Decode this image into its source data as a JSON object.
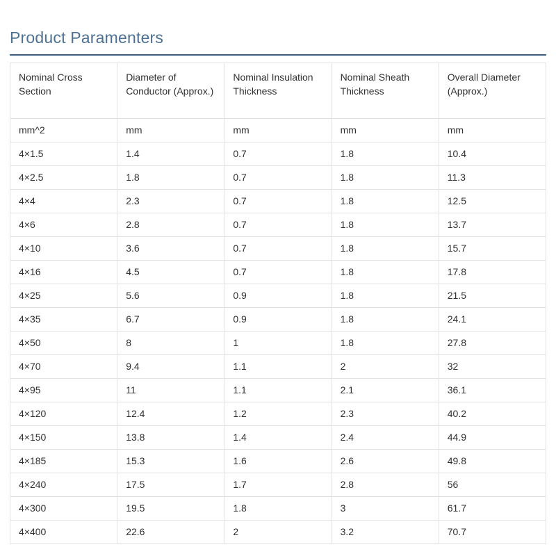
{
  "page": {
    "title": "Product Paramenters"
  },
  "theme": {
    "title_color": "#4e7193",
    "divider_color": "#3f5d80",
    "table_border_color": "#e2e2e2",
    "text_color": "#303030",
    "background_color": "#ffffff"
  },
  "table": {
    "columns": [
      "Nominal Cross Section",
      "Diameter of Conductor (Approx.)",
      "Nominal Insulation Thickness",
      "Nominal Sheath Thickness",
      "Overall Diameter (Approx.)"
    ],
    "units": [
      "mm^2",
      "mm",
      "mm",
      "mm",
      "mm"
    ],
    "rows": [
      [
        "4×1.5",
        "1.4",
        "0.7",
        "1.8",
        "10.4"
      ],
      [
        "4×2.5",
        "1.8",
        "0.7",
        "1.8",
        "11.3"
      ],
      [
        "4×4",
        "2.3",
        "0.7",
        "1.8",
        "12.5"
      ],
      [
        "4×6",
        "2.8",
        "0.7",
        "1.8",
        "13.7"
      ],
      [
        "4×10",
        "3.6",
        "0.7",
        "1.8",
        "15.7"
      ],
      [
        "4×16",
        "4.5",
        "0.7",
        "1.8",
        "17.8"
      ],
      [
        "4×25",
        "5.6",
        "0.9",
        "1.8",
        "21.5"
      ],
      [
        "4×35",
        "6.7",
        "0.9",
        "1.8",
        "24.1"
      ],
      [
        "4×50",
        "8",
        "1",
        "1.8",
        "27.8"
      ],
      [
        "4×70",
        "9.4",
        "1.1",
        "2",
        "32"
      ],
      [
        "4×95",
        "11",
        "1.1",
        "2.1",
        "36.1"
      ],
      [
        "4×120",
        "12.4",
        "1.2",
        "2.3",
        "40.2"
      ],
      [
        "4×150",
        "13.8",
        "1.4",
        "2.4",
        "44.9"
      ],
      [
        "4×185",
        "15.3",
        "1.6",
        "2.6",
        "49.8"
      ],
      [
        "4×240",
        "17.5",
        "1.7",
        "2.8",
        "56"
      ],
      [
        "4×300",
        "19.5",
        "1.8",
        "3",
        "61.7"
      ],
      [
        "4×400",
        "22.6",
        "2",
        "3.2",
        "70.7"
      ]
    ]
  }
}
